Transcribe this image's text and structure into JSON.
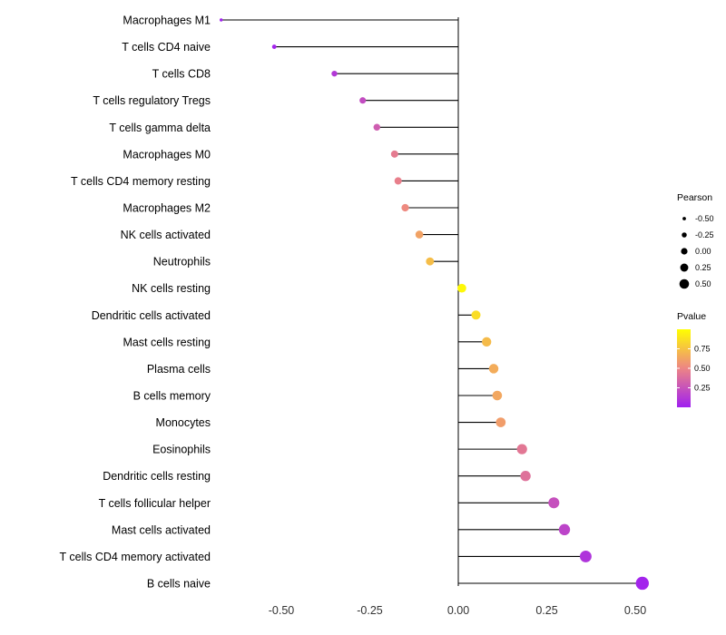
{
  "chart_data": {
    "type": "scatter",
    "style": "lollipop",
    "title": "",
    "xlabel": "",
    "ylabel": "",
    "grid": false,
    "zero_line": true,
    "xlim": [
      -0.72,
      0.57
    ],
    "x_ticks": [
      "-0.50",
      "-0.25",
      "0.00",
      "0.25",
      "0.50"
    ],
    "x_tick_values": [
      -0.5,
      -0.25,
      0,
      0.25,
      0.5
    ],
    "points": [
      {
        "label": "Macrophages M1",
        "pearson": -0.67,
        "pvalue": 0.005
      },
      {
        "label": "T cells CD4 naive",
        "pearson": -0.52,
        "pvalue": 0.02
      },
      {
        "label": "T cells CD8",
        "pearson": -0.35,
        "pvalue": 0.12
      },
      {
        "label": "T cells regulatory  Tregs",
        "pearson": -0.27,
        "pvalue": 0.22
      },
      {
        "label": "T cells gamma delta",
        "pearson": -0.23,
        "pvalue": 0.3
      },
      {
        "label": "Macrophages M0",
        "pearson": -0.18,
        "pvalue": 0.45
      },
      {
        "label": "T cells CD4 memory resting",
        "pearson": -0.17,
        "pvalue": 0.47
      },
      {
        "label": "Macrophages M2",
        "pearson": -0.15,
        "pvalue": 0.52
      },
      {
        "label": "NK cells activated",
        "pearson": -0.11,
        "pvalue": 0.62
      },
      {
        "label": "Neutrophils",
        "pearson": -0.08,
        "pvalue": 0.73
      },
      {
        "label": "NK cells resting",
        "pearson": 0.01,
        "pvalue": 0.97
      },
      {
        "label": "Dendritic cells activated",
        "pearson": 0.05,
        "pvalue": 0.86
      },
      {
        "label": "Mast cells resting",
        "pearson": 0.08,
        "pvalue": 0.72
      },
      {
        "label": "Plasma cells",
        "pearson": 0.1,
        "pvalue": 0.66
      },
      {
        "label": "B cells memory",
        "pearson": 0.11,
        "pvalue": 0.64
      },
      {
        "label": "Monocytes",
        "pearson": 0.12,
        "pvalue": 0.6
      },
      {
        "label": "Eosinophils",
        "pearson": 0.18,
        "pvalue": 0.43
      },
      {
        "label": "Dendritic cells resting",
        "pearson": 0.19,
        "pvalue": 0.4
      },
      {
        "label": "T cells follicular helper",
        "pearson": 0.27,
        "pvalue": 0.24
      },
      {
        "label": "Mast cells activated",
        "pearson": 0.3,
        "pvalue": 0.18
      },
      {
        "label": "T cells CD4 memory activated",
        "pearson": 0.36,
        "pvalue": 0.1
      },
      {
        "label": "B cells naive",
        "pearson": 0.52,
        "pvalue": 0.02
      }
    ],
    "legend_size": {
      "title": "Pearson",
      "ticks": [
        "-0.50",
        "-0.25",
        "0.00",
        "0.25",
        "0.50"
      ],
      "tick_values": [
        -0.5,
        -0.25,
        0,
        0.25,
        0.5
      ]
    },
    "legend_color": {
      "title": "Pvalue",
      "ticks": [
        "0.75",
        "0.50",
        "0.25"
      ],
      "tick_values": [
        0.75,
        0.5,
        0.25
      ],
      "gradient_high": "#FFFF00",
      "gradient_mid": "#ED8585",
      "gradient_low": "#A020F0"
    },
    "colors": {
      "stem": "#000000",
      "text": "#000000",
      "axis_text": "#333333",
      "background": "#FFFFFF"
    }
  }
}
